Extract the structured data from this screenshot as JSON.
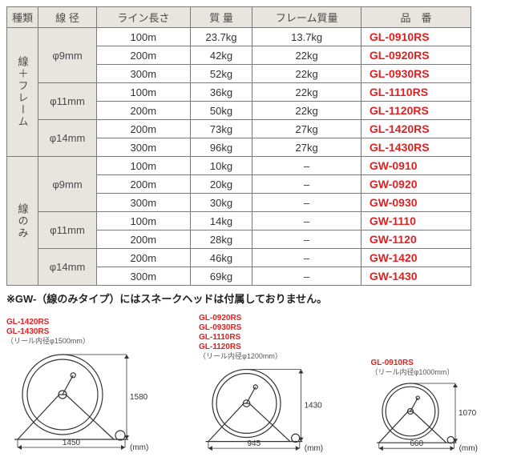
{
  "headers": {
    "type": "種類",
    "diameter": "線 径",
    "length": "ライン長さ",
    "mass": "質 量",
    "frame_mass": "フレーム質量",
    "part_no": "品　番"
  },
  "categories": [
    {
      "label": "線＋フレーム",
      "diams": [
        {
          "diam": "φ9mm",
          "rows": [
            {
              "len": "100m",
              "mass": "23.7kg",
              "fmass": "13.7kg",
              "pn": "GL-0910RS"
            },
            {
              "len": "200m",
              "mass": "42kg",
              "fmass": "22kg",
              "pn": "GL-0920RS"
            },
            {
              "len": "300m",
              "mass": "52kg",
              "fmass": "22kg",
              "pn": "GL-0930RS"
            }
          ]
        },
        {
          "diam": "φ11mm",
          "rows": [
            {
              "len": "100m",
              "mass": "36kg",
              "fmass": "22kg",
              "pn": "GL-1110RS"
            },
            {
              "len": "200m",
              "mass": "50kg",
              "fmass": "22kg",
              "pn": "GL-1120RS"
            }
          ]
        },
        {
          "diam": "φ14mm",
          "rows": [
            {
              "len": "200m",
              "mass": "73kg",
              "fmass": "27kg",
              "pn": "GL-1420RS"
            },
            {
              "len": "300m",
              "mass": "96kg",
              "fmass": "27kg",
              "pn": "GL-1430RS"
            }
          ]
        }
      ]
    },
    {
      "label": "線のみ",
      "diams": [
        {
          "diam": "φ9mm",
          "rows": [
            {
              "len": "100m",
              "mass": "10kg",
              "fmass": "–",
              "pn": "GW-0910"
            },
            {
              "len": "200m",
              "mass": "20kg",
              "fmass": "–",
              "pn": "GW-0920"
            },
            {
              "len": "300m",
              "mass": "30kg",
              "fmass": "–",
              "pn": "GW-0930"
            }
          ]
        },
        {
          "diam": "φ11mm",
          "rows": [
            {
              "len": "100m",
              "mass": "14kg",
              "fmass": "–",
              "pn": "GW-1110"
            },
            {
              "len": "200m",
              "mass": "28kg",
              "fmass": "–",
              "pn": "GW-1120"
            }
          ]
        },
        {
          "diam": "φ14mm",
          "rows": [
            {
              "len": "200m",
              "mass": "46kg",
              "fmass": "–",
              "pn": "GW-1420"
            },
            {
              "len": "300m",
              "mass": "69kg",
              "fmass": "–",
              "pn": "GW-1430"
            }
          ]
        }
      ]
    }
  ],
  "note": "※GW-（線のみタイプ）にはスネークヘッドは付属しておりません。",
  "diagrams": [
    {
      "pns": [
        "GL-1420RS",
        "GL-1430RS"
      ],
      "sub": "（リール内径φ1500mm）",
      "height": "1580",
      "width": "1450",
      "unit": "(mm)",
      "svg_scale": 1.0
    },
    {
      "pns": [
        "GL-0920RS",
        "GL-0930RS",
        "GL-1110RS",
        "GL-1120RS"
      ],
      "sub": "（リール内径φ1200mm）",
      "height": "1430",
      "width": "945",
      "unit": "(mm)",
      "svg_scale": 0.85
    },
    {
      "pns": [
        "GL-0910RS"
      ],
      "sub": "（リール内径φ1000mm）",
      "height": "1070",
      "width": "660",
      "unit": "(mm)",
      "svg_scale": 0.7
    }
  ]
}
